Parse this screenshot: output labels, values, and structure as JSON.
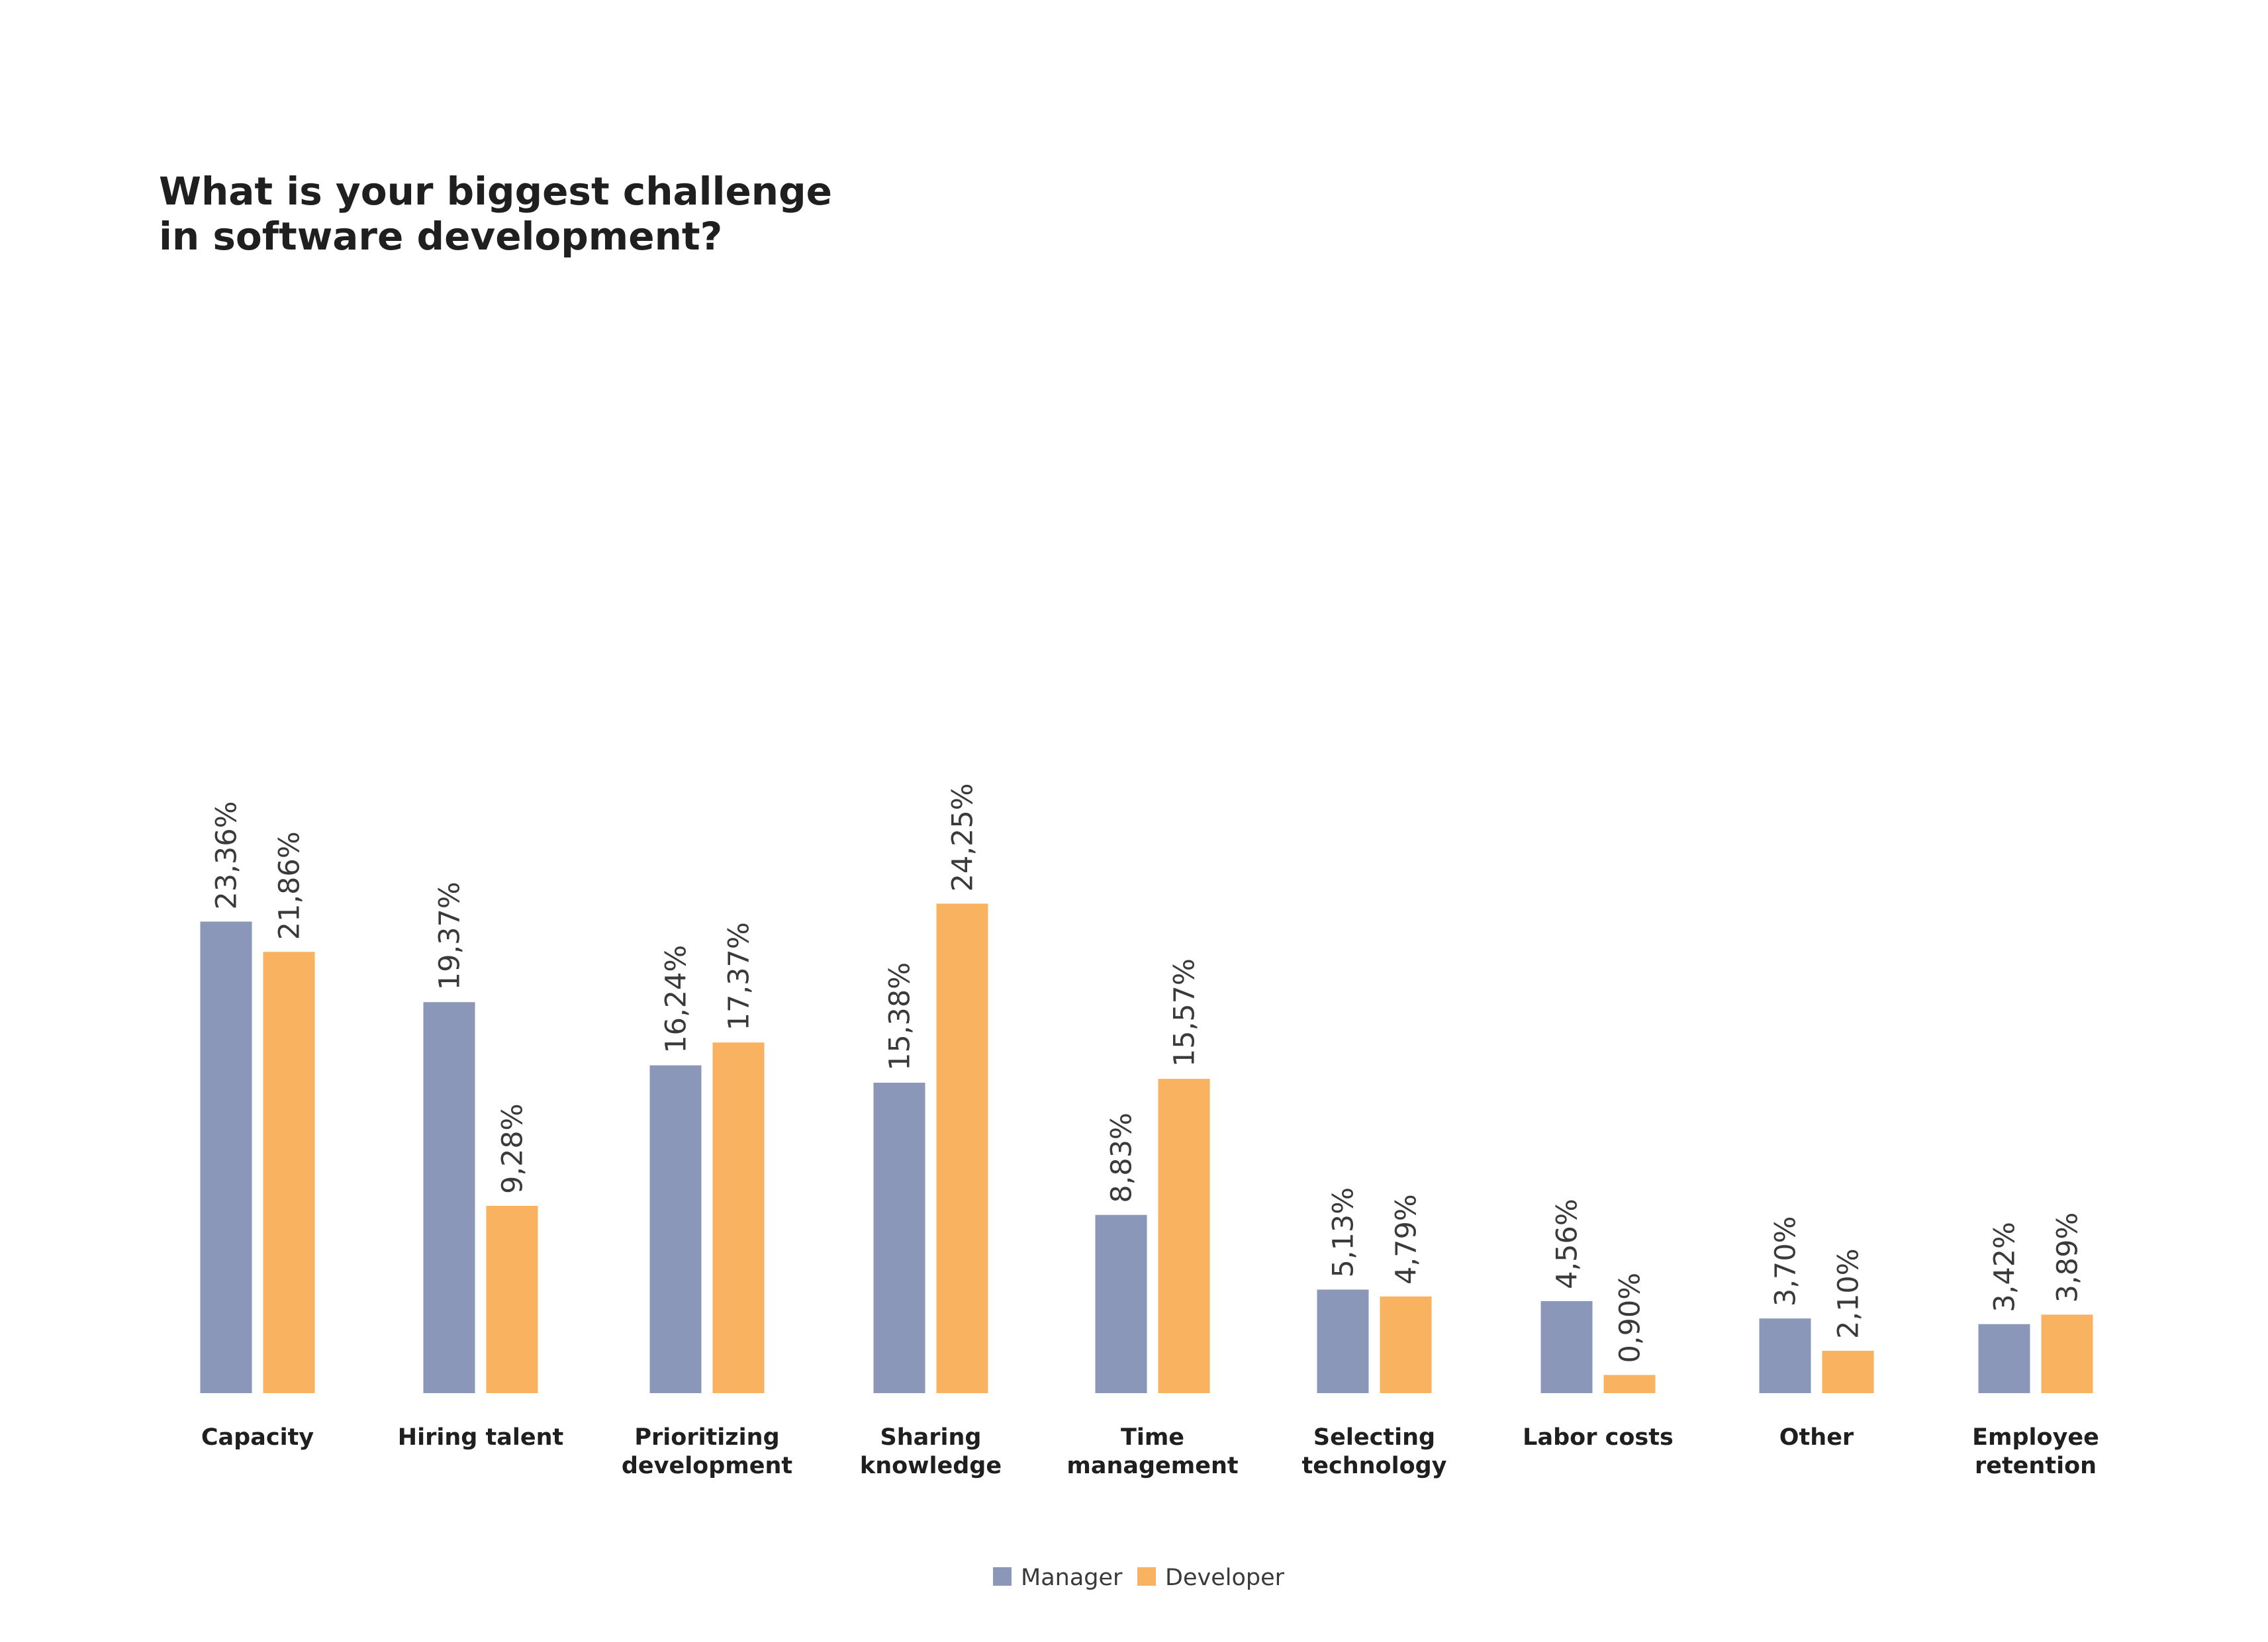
{
  "chart_data": {
    "type": "bar",
    "title": "What is your biggest challenge in software development?",
    "title_lines": [
      "What is your biggest challenge",
      "in software development?"
    ],
    "xlabel": "",
    "ylabel": "",
    "ylim": [
      0,
      30
    ],
    "grid": false,
    "legend_position": "bottom-center",
    "categories": [
      [
        "Capacity"
      ],
      [
        "Hiring talent"
      ],
      [
        "Prioritizing",
        "development"
      ],
      [
        "Sharing",
        "knowledge"
      ],
      [
        "Time",
        "management"
      ],
      [
        "Selecting",
        "technology"
      ],
      [
        "Labor costs"
      ],
      [
        "Other"
      ],
      [
        "Employee",
        "retention"
      ]
    ],
    "series": [
      {
        "name": "Manager",
        "color": "#8a97b8",
        "values": [
          23.36,
          19.37,
          16.24,
          15.38,
          8.83,
          5.13,
          4.56,
          3.7,
          3.42
        ],
        "labels": [
          "23,36%",
          "19,37%",
          "16,24%",
          "15,38%",
          "8,83%",
          "5,13%",
          "4,56%",
          "3,70%",
          "3,42%"
        ]
      },
      {
        "name": "Developer",
        "color": "#f9b25f",
        "values": [
          21.86,
          9.28,
          17.37,
          24.25,
          15.57,
          4.79,
          0.9,
          2.1,
          3.89
        ],
        "labels": [
          "21,86%",
          "9,28%",
          "17,37%",
          "24,25%",
          "15,57%",
          "4,79%",
          "0,90%",
          "2,10%",
          "3,89%"
        ]
      }
    ]
  }
}
